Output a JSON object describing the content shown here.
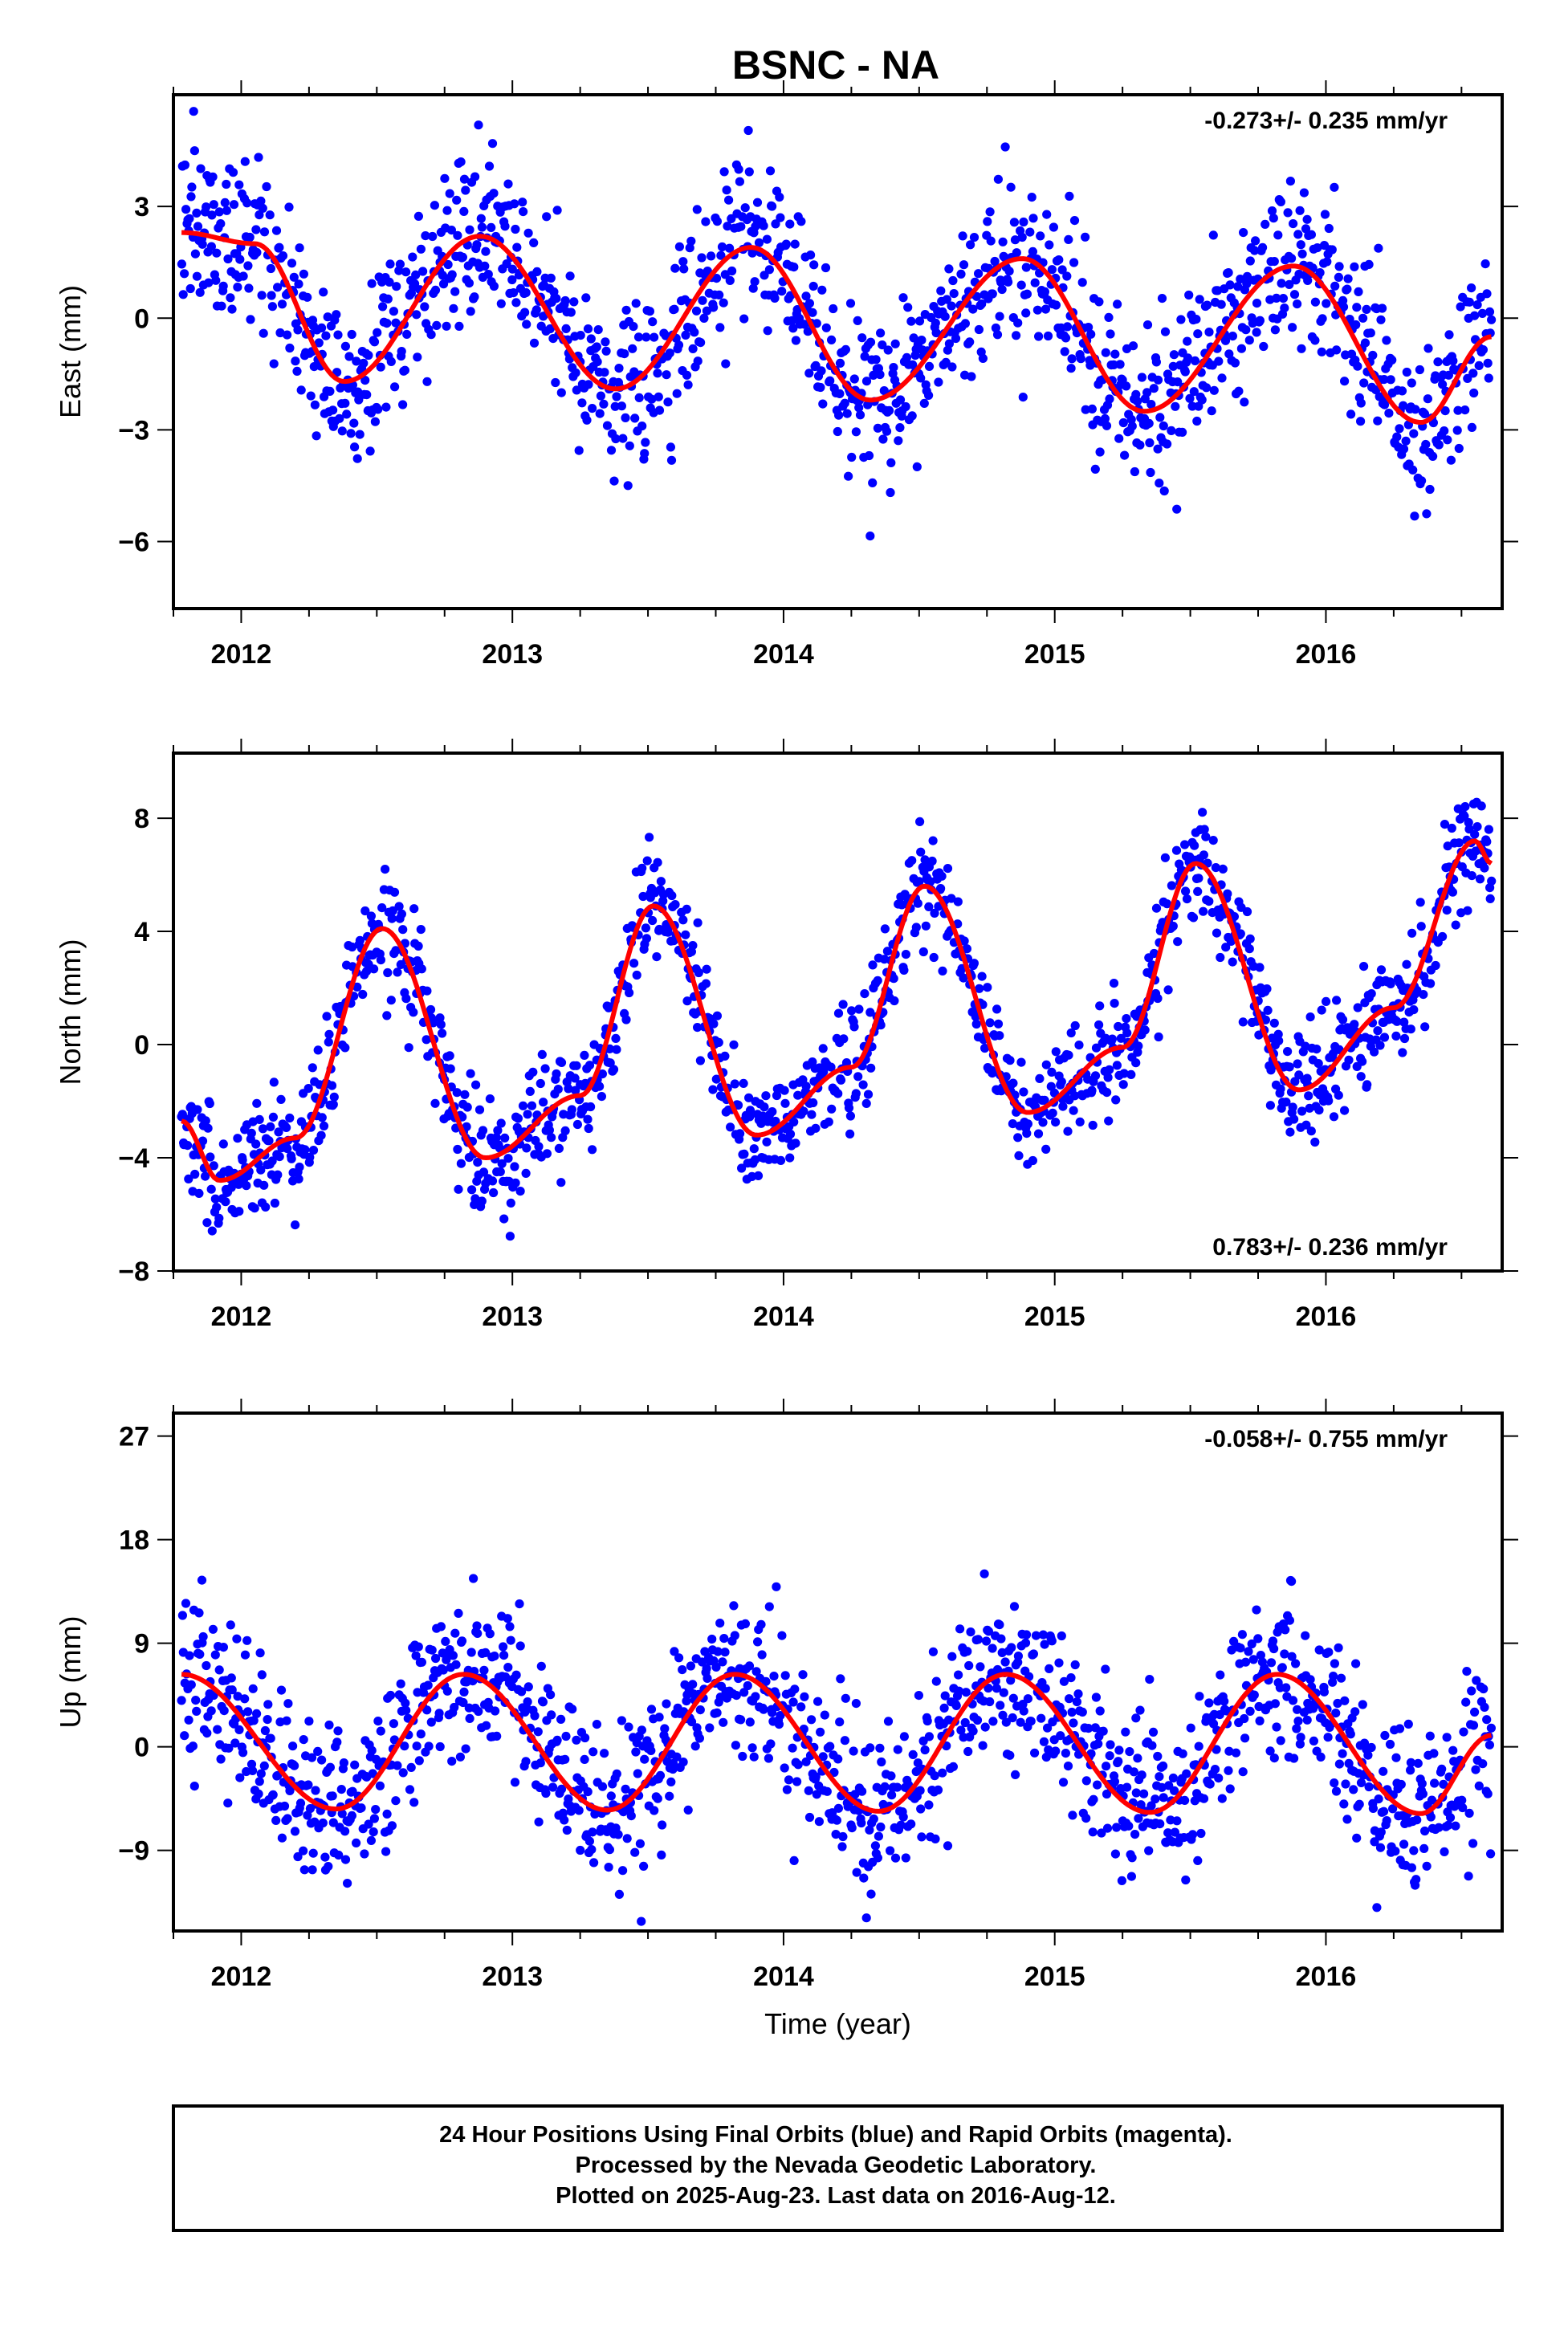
{
  "title": "BSNC - NA",
  "colors": {
    "data": "#0000ff",
    "fit": "#ff0000",
    "frame": "#000000"
  },
  "note": {
    "line1": "24 Hour Positions Using Final Orbits (blue) and Rapid Orbits (magenta).",
    "line2": "Processed by the Nevada Geodetic Laboratory.",
    "line3": "Plotted on 2025-Aug-23. Last data on 2016-Aug-12."
  },
  "chart_data": [
    {
      "type": "scatter",
      "component": "east",
      "ylabel": "East (mm)",
      "xlabel": "",
      "xlim": [
        2011.75,
        2016.65
      ],
      "ylim": [
        -7.8,
        6.0
      ],
      "yticks": [
        3,
        0,
        -3,
        -6
      ],
      "ytick_labels": [
        "3",
        "0",
        "−3",
        "−6"
      ],
      "xticks": [
        2012,
        2013,
        2014,
        2015,
        2016
      ],
      "xtick_labels": [
        "2012",
        "2013",
        "2014",
        "2015",
        "2016"
      ],
      "rate": "-0.273+/- 0.235 mm/yr",
      "rate_position": "top-right",
      "series": [
        {
          "kind": "daily positions",
          "color": "#0000ff",
          "x_start": 2011.78,
          "x_end": 2016.61,
          "y_spread_mm": 1.1
        },
        {
          "kind": "seasonal fit",
          "color": "#ff0000",
          "x": [
            2011.78,
            2012.05,
            2012.38,
            2012.88,
            2013.38,
            2013.88,
            2014.32,
            2014.88,
            2015.33,
            2015.88,
            2016.35,
            2016.61
          ],
          "values": [
            2.3,
            2.0,
            -1.7,
            2.2,
            -1.9,
            1.9,
            -2.2,
            1.6,
            -2.5,
            1.4,
            -2.8,
            -0.5
          ]
        }
      ]
    },
    {
      "type": "scatter",
      "component": "north",
      "ylabel": "North (mm)",
      "xlabel": "",
      "xlim": [
        2011.75,
        2016.65
      ],
      "ylim": [
        -8.0,
        10.3
      ],
      "yticks": [
        8,
        4,
        0,
        -4,
        -8
      ],
      "ytick_labels": [
        "8",
        "4",
        "0",
        "−4",
        "−8"
      ],
      "xticks": [
        2012,
        2013,
        2014,
        2015,
        2016
      ],
      "xtick_labels": [
        "2012",
        "2013",
        "2014",
        "2015",
        "2016"
      ],
      "rate": "0.783+/- 0.236 mm/yr",
      "rate_position": "bottom-right",
      "series": [
        {
          "kind": "daily positions",
          "color": "#0000ff",
          "x_start": 2011.78,
          "x_end": 2016.61,
          "y_spread_mm": 1.0
        },
        {
          "kind": "seasonal fit",
          "color": "#ff0000",
          "x": [
            2011.78,
            2011.92,
            2012.2,
            2012.52,
            2012.9,
            2013.25,
            2013.52,
            2013.9,
            2014.25,
            2014.52,
            2014.9,
            2015.25,
            2015.52,
            2015.9,
            2016.25,
            2016.55,
            2016.61
          ],
          "values": [
            -2.7,
            -4.8,
            -3.3,
            4.1,
            -4.0,
            -1.8,
            4.9,
            -3.2,
            -0.8,
            5.6,
            -2.4,
            -0.1,
            6.4,
            -1.6,
            1.3,
            7.2,
            6.4
          ]
        }
      ]
    },
    {
      "type": "scatter",
      "component": "up",
      "ylabel": "Up (mm)",
      "xlabel": "Time (year)",
      "xlim": [
        2011.75,
        2016.65
      ],
      "ylim": [
        -16.0,
        29.0
      ],
      "yticks": [
        27,
        18,
        9,
        0,
        -9
      ],
      "ytick_labels": [
        "27",
        "18",
        "9",
        "0",
        "−9"
      ],
      "xticks": [
        2012,
        2013,
        2014,
        2015,
        2016
      ],
      "xtick_labels": [
        "2012",
        "2013",
        "2014",
        "2015",
        "2016"
      ],
      "rate": "-0.058+/- 0.755 mm/yr",
      "rate_position": "top-right",
      "series": [
        {
          "kind": "daily positions",
          "color": "#0000ff",
          "x_start": 2011.78,
          "x_end": 2016.61,
          "y_spread_mm": 3.5
        },
        {
          "kind": "seasonal fit",
          "color": "#ff0000",
          "x": [
            2011.78,
            2012.35,
            2012.82,
            2013.35,
            2013.82,
            2014.35,
            2014.82,
            2015.35,
            2015.82,
            2016.35,
            2016.61
          ],
          "values": [
            6.3,
            -5.4,
            6.3,
            -5.5,
            6.3,
            -5.6,
            6.3,
            -5.7,
            6.3,
            -5.8,
            1.0
          ]
        }
      ]
    }
  ]
}
